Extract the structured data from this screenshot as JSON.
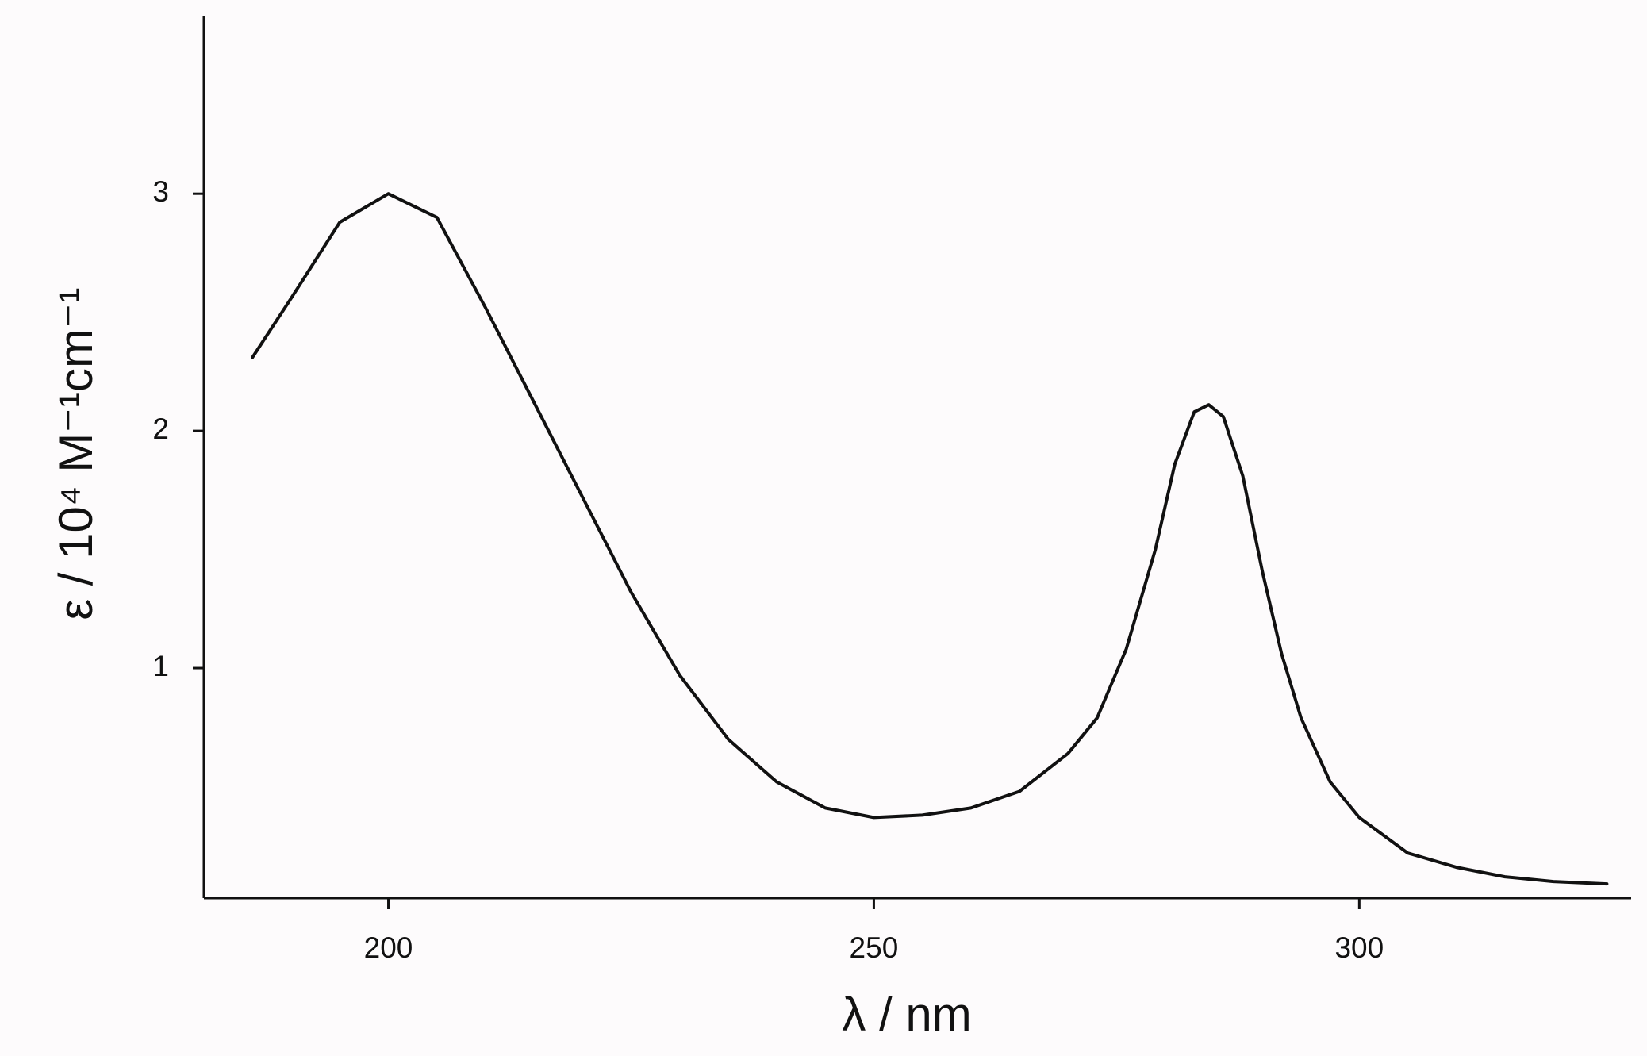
{
  "chart_data": {
    "type": "line",
    "xlabel": "λ  /  nm",
    "ylabel": "ε / 10⁴ M⁻¹cm⁻¹",
    "xlim": [
      181,
      328
    ],
    "ylim": [
      0.03,
      3.75
    ],
    "xticks": [
      200,
      250,
      300
    ],
    "yticks": [
      1,
      2,
      3
    ],
    "grid": false,
    "series": [
      {
        "color": "#111111",
        "x": [
          186,
          190,
          195,
          200,
          205,
          210,
          215,
          220,
          225,
          230,
          235,
          240,
          245,
          250,
          255,
          260,
          265,
          270,
          273,
          276,
          279,
          281,
          283,
          284.5,
          286,
          288,
          290,
          292,
          294,
          297,
          300,
          305,
          310,
          315,
          320,
          325.5
        ],
        "values": [
          2.31,
          2.56,
          2.88,
          3.0,
          2.9,
          2.52,
          2.12,
          1.72,
          1.32,
          0.97,
          0.7,
          0.52,
          0.41,
          0.37,
          0.38,
          0.41,
          0.48,
          0.64,
          0.79,
          1.08,
          1.5,
          1.86,
          2.08,
          2.11,
          2.06,
          1.81,
          1.41,
          1.06,
          0.79,
          0.52,
          0.37,
          0.22,
          0.16,
          0.12,
          0.1,
          0.09
        ]
      }
    ]
  }
}
